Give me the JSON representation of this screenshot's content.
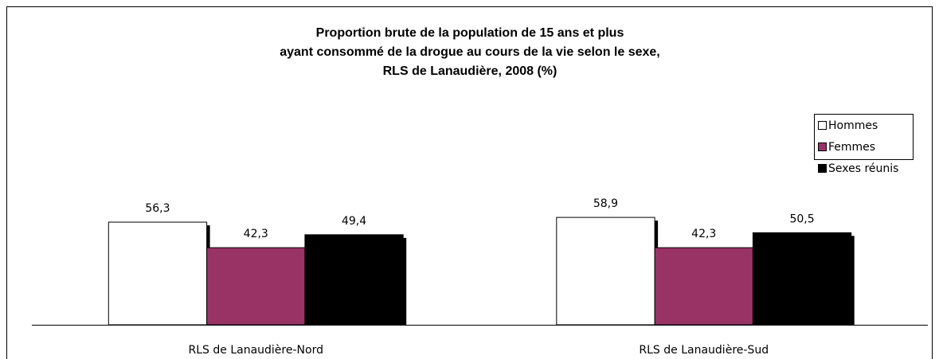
{
  "chart_data": {
    "type": "bar",
    "title": [
      "Proportion brute de la population de 15 ans et plus",
      "ayant consommé de la drogue au cours de la vie selon le sexe,",
      "RLS de Lanaudière, 2008 (%)"
    ],
    "categories": [
      "RLS de Lanaudière-Nord",
      "RLS de Lanaudière-Sud"
    ],
    "series": [
      {
        "name": "Hommes",
        "color": "#ffffff",
        "values": [
          56.3,
          58.9
        ],
        "value_labels": [
          "56,3",
          "58,9"
        ]
      },
      {
        "name": "Femmes",
        "color": "#993366",
        "values": [
          42.3,
          42.3
        ],
        "value_labels": [
          "42,3",
          "42,3"
        ]
      },
      {
        "name": "Sexes réunis",
        "color": "#000000",
        "values": [
          49.4,
          50.5
        ],
        "value_labels": [
          "49,4",
          "50,5"
        ]
      }
    ],
    "legend": "upper right"
  }
}
